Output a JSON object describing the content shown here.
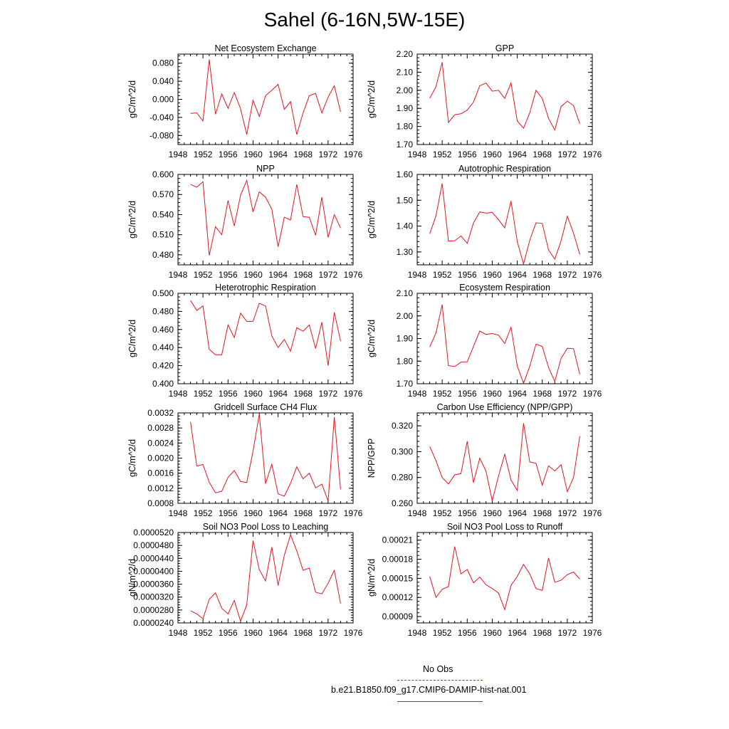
{
  "figure": {
    "title": "Sahel (6-16N,5W-15E)"
  },
  "legend": {
    "entries": [
      {
        "label": "No Obs",
        "color": "#3b49c8",
        "style": "dashed"
      },
      {
        "label": "b.e21.B1850.f09_g17.CMIP6-DAMIP-hist-nat.001",
        "color": "#e8141e",
        "style": "solid"
      }
    ]
  },
  "chart_data": [
    {
      "type": "line",
      "title": "Net Ecosystem Exchange",
      "ylabel": "gC/m^2/d",
      "xlabel": "",
      "xlim": [
        1948,
        1976
      ],
      "ylim": [
        -0.1,
        0.1
      ],
      "xticks": [
        1948,
        1952,
        1956,
        1960,
        1964,
        1968,
        1972,
        1976
      ],
      "xtick_labels": [
        "1948",
        "1952",
        "1956",
        "1960",
        "1964",
        "1968",
        "1972",
        "1976"
      ],
      "yticks": [
        -0.08,
        -0.04,
        0.0,
        0.04,
        0.08
      ],
      "ytick_labels": [
        "-0.080",
        "-0.040",
        "0.000",
        "0.040",
        "0.080"
      ],
      "series": [
        {
          "color": "#e8141e",
          "x": [
            1950,
            1951,
            1952,
            1953,
            1954,
            1955,
            1956,
            1957,
            1958,
            1959,
            1960,
            1961,
            1962,
            1963,
            1964,
            1965,
            1966,
            1967,
            1968,
            1969,
            1970,
            1971,
            1972,
            1973,
            1974
          ],
          "y": [
            -0.031,
            -0.03,
            -0.048,
            0.088,
            -0.033,
            0.012,
            -0.02,
            0.015,
            -0.021,
            -0.078,
            -0.002,
            -0.038,
            0.008,
            0.02,
            0.033,
            -0.022,
            -0.005,
            -0.078,
            -0.03,
            0.008,
            0.013,
            -0.03,
            0.005,
            0.03,
            -0.028
          ]
        }
      ]
    },
    {
      "type": "line",
      "title": "GPP",
      "ylabel": "gC/m^2/d",
      "xlabel": "",
      "xlim": [
        1948,
        1976
      ],
      "ylim": [
        1.7,
        2.2
      ],
      "xticks": [
        1948,
        1952,
        1956,
        1960,
        1964,
        1968,
        1972,
        1976
      ],
      "xtick_labels": [
        "1948",
        "1952",
        "1956",
        "1960",
        "1964",
        "1968",
        "1972",
        "1976"
      ],
      "yticks": [
        1.7,
        1.8,
        1.9,
        2.0,
        2.1,
        2.2
      ],
      "ytick_labels": [
        "1.70",
        "1.80",
        "1.90",
        "2.00",
        "2.10",
        "2.20"
      ],
      "series": [
        {
          "color": "#e8141e",
          "x": [
            1950,
            1951,
            1952,
            1953,
            1954,
            1955,
            1956,
            1957,
            1958,
            1959,
            1960,
            1961,
            1962,
            1963,
            1964,
            1965,
            1966,
            1967,
            1968,
            1969,
            1970,
            1971,
            1972,
            1973,
            1974
          ],
          "y": [
            1.955,
            2.02,
            2.155,
            1.822,
            1.865,
            1.87,
            1.89,
            1.935,
            2.025,
            2.04,
            1.995,
            2.0,
            1.955,
            2.04,
            1.83,
            1.79,
            1.875,
            2.0,
            1.955,
            1.845,
            1.78,
            1.91,
            1.94,
            1.915,
            1.815
          ]
        }
      ]
    },
    {
      "type": "line",
      "title": "NPP",
      "ylabel": "gC/m^2/d",
      "xlabel": "",
      "xlim": [
        1948,
        1976
      ],
      "ylim": [
        0.465,
        0.6
      ],
      "xticks": [
        1948,
        1952,
        1956,
        1960,
        1964,
        1968,
        1972,
        1976
      ],
      "xtick_labels": [
        "1948",
        "1952",
        "1956",
        "1960",
        "1964",
        "1968",
        "1972",
        "1976"
      ],
      "yticks": [
        0.48,
        0.51,
        0.54,
        0.57,
        0.6
      ],
      "ytick_labels": [
        "0.480",
        "0.510",
        "0.540",
        "0.570",
        "0.600"
      ],
      "series": [
        {
          "color": "#e8141e",
          "x": [
            1950,
            1951,
            1952,
            1953,
            1954,
            1955,
            1956,
            1957,
            1958,
            1959,
            1960,
            1961,
            1962,
            1963,
            1964,
            1965,
            1966,
            1967,
            1968,
            1969,
            1970,
            1971,
            1972,
            1973,
            1974
          ],
          "y": [
            0.585,
            0.581,
            0.589,
            0.479,
            0.522,
            0.51,
            0.561,
            0.523,
            0.569,
            0.591,
            0.544,
            0.574,
            0.566,
            0.548,
            0.492,
            0.536,
            0.532,
            0.585,
            0.537,
            0.536,
            0.509,
            0.566,
            0.506,
            0.54,
            0.52
          ]
        }
      ]
    },
    {
      "type": "line",
      "title": "Autotrophic Respiration",
      "ylabel": "gC/m^2/d",
      "xlabel": "",
      "xlim": [
        1948,
        1976
      ],
      "ylim": [
        1.25,
        1.6
      ],
      "xticks": [
        1948,
        1952,
        1956,
        1960,
        1964,
        1968,
        1972,
        1976
      ],
      "xtick_labels": [
        "1948",
        "1952",
        "1956",
        "1960",
        "1964",
        "1968",
        "1972",
        "1976"
      ],
      "yticks": [
        1.3,
        1.4,
        1.5,
        1.6
      ],
      "ytick_labels": [
        "1.30",
        "1.40",
        "1.50",
        "1.60"
      ],
      "series": [
        {
          "color": "#e8141e",
          "x": [
            1950,
            1951,
            1952,
            1953,
            1954,
            1955,
            1956,
            1957,
            1958,
            1959,
            1960,
            1961,
            1962,
            1963,
            1964,
            1965,
            1966,
            1967,
            1968,
            1969,
            1970,
            1971,
            1972,
            1973,
            1974
          ],
          "y": [
            1.37,
            1.44,
            1.565,
            1.342,
            1.343,
            1.362,
            1.333,
            1.412,
            1.455,
            1.45,
            1.453,
            1.425,
            1.393,
            1.497,
            1.34,
            1.253,
            1.345,
            1.413,
            1.41,
            1.308,
            1.272,
            1.343,
            1.438,
            1.373,
            1.29
          ]
        }
      ]
    },
    {
      "type": "line",
      "title": "Heterotrophic Respiration",
      "ylabel": "gC/m^2/d",
      "xlabel": "",
      "xlim": [
        1948,
        1976
      ],
      "ylim": [
        0.4,
        0.5
      ],
      "xticks": [
        1948,
        1952,
        1956,
        1960,
        1964,
        1968,
        1972,
        1976
      ],
      "xtick_labels": [
        "1948",
        "1952",
        "1956",
        "1960",
        "1964",
        "1968",
        "1972",
        "1976"
      ],
      "yticks": [
        0.4,
        0.42,
        0.44,
        0.46,
        0.48,
        0.5
      ],
      "ytick_labels": [
        "0.400",
        "0.420",
        "0.440",
        "0.460",
        "0.480",
        "0.500"
      ],
      "series": [
        {
          "color": "#e8141e",
          "x": [
            1950,
            1951,
            1952,
            1953,
            1954,
            1955,
            1956,
            1957,
            1958,
            1959,
            1960,
            1961,
            1962,
            1963,
            1964,
            1965,
            1966,
            1967,
            1968,
            1969,
            1970,
            1971,
            1972,
            1973,
            1974
          ],
          "y": [
            0.492,
            0.481,
            0.486,
            0.438,
            0.432,
            0.432,
            0.465,
            0.451,
            0.478,
            0.469,
            0.469,
            0.489,
            0.486,
            0.453,
            0.44,
            0.449,
            0.436,
            0.462,
            0.458,
            0.465,
            0.439,
            0.468,
            0.42,
            0.479,
            0.447
          ]
        }
      ]
    },
    {
      "type": "line",
      "title": "Ecosystem Respiration",
      "ylabel": "gC/m^2/d",
      "xlabel": "",
      "xlim": [
        1948,
        1976
      ],
      "ylim": [
        1.7,
        2.1
      ],
      "xticks": [
        1948,
        1952,
        1956,
        1960,
        1964,
        1968,
        1972,
        1976
      ],
      "xtick_labels": [
        "1948",
        "1952",
        "1956",
        "1960",
        "1964",
        "1968",
        "1972",
        "1976"
      ],
      "yticks": [
        1.7,
        1.8,
        1.9,
        2.0,
        2.1
      ],
      "ytick_labels": [
        "1.70",
        "1.80",
        "1.90",
        "2.00",
        "2.10"
      ],
      "series": [
        {
          "color": "#e8141e",
          "x": [
            1950,
            1951,
            1952,
            1953,
            1954,
            1955,
            1956,
            1957,
            1958,
            1959,
            1960,
            1961,
            1962,
            1963,
            1964,
            1965,
            1966,
            1967,
            1968,
            1969,
            1970,
            1971,
            1972,
            1973,
            1974
          ],
          "y": [
            1.862,
            1.925,
            2.05,
            1.78,
            1.776,
            1.795,
            1.797,
            1.865,
            1.933,
            1.918,
            1.922,
            1.915,
            1.878,
            1.95,
            1.778,
            1.702,
            1.777,
            1.875,
            1.865,
            1.772,
            1.71,
            1.812,
            1.857,
            1.855,
            1.742
          ]
        }
      ]
    },
    {
      "type": "line",
      "title": "Gridcell Surface CH4 Flux",
      "ylabel": "gC/m^2/d",
      "xlabel": "",
      "xlim": [
        1948,
        1976
      ],
      "ylim": [
        0.0008,
        0.0032
      ],
      "xticks": [
        1948,
        1952,
        1956,
        1960,
        1964,
        1968,
        1972,
        1976
      ],
      "xtick_labels": [
        "1948",
        "1952",
        "1956",
        "1960",
        "1964",
        "1968",
        "1972",
        "1976"
      ],
      "yticks": [
        0.0008,
        0.0012,
        0.0016,
        0.002,
        0.0024,
        0.0028,
        0.0032
      ],
      "ytick_labels": [
        "0.0008",
        "0.0012",
        "0.0016",
        "0.0020",
        "0.0024",
        "0.0028",
        "0.0032"
      ],
      "series": [
        {
          "color": "#e8141e",
          "x": [
            1950,
            1951,
            1952,
            1953,
            1954,
            1955,
            1956,
            1957,
            1958,
            1959,
            1960,
            1961,
            1962,
            1963,
            1964,
            1965,
            1966,
            1967,
            1968,
            1969,
            1970,
            1971,
            1972,
            1973,
            1974
          ],
          "y": [
            0.00296,
            0.00179,
            0.00183,
            0.00136,
            0.00108,
            0.00112,
            0.00149,
            0.00167,
            0.00138,
            0.00135,
            0.00218,
            0.00317,
            0.00132,
            0.00184,
            0.00105,
            0.00099,
            0.00133,
            0.00177,
            0.00145,
            0.0016,
            0.00121,
            0.00131,
            0.00086,
            0.00309,
            0.00117
          ]
        }
      ]
    },
    {
      "type": "line",
      "title": "Carbon Use Efficiency (NPP/GPP)",
      "ylabel": "NPP/GPP",
      "xlabel": "",
      "xlim": [
        1948,
        1976
      ],
      "ylim": [
        0.26,
        0.33
      ],
      "xticks": [
        1948,
        1952,
        1956,
        1960,
        1964,
        1968,
        1972,
        1976
      ],
      "xtick_labels": [
        "1948",
        "1952",
        "1956",
        "1960",
        "1964",
        "1968",
        "1972",
        "1976"
      ],
      "yticks": [
        0.26,
        0.28,
        0.3,
        0.32
      ],
      "ytick_labels": [
        "0.260",
        "0.280",
        "0.300",
        "0.320"
      ],
      "series": [
        {
          "color": "#e8141e",
          "x": [
            1950,
            1951,
            1952,
            1953,
            1954,
            1955,
            1956,
            1957,
            1958,
            1959,
            1960,
            1961,
            1962,
            1963,
            1964,
            1965,
            1966,
            1967,
            1968,
            1969,
            1970,
            1971,
            1972,
            1973,
            1974
          ],
          "y": [
            0.304,
            0.293,
            0.28,
            0.275,
            0.282,
            0.283,
            0.308,
            0.276,
            0.295,
            0.285,
            0.262,
            0.281,
            0.298,
            0.278,
            0.27,
            0.322,
            0.292,
            0.291,
            0.274,
            0.289,
            0.285,
            0.29,
            0.269,
            0.28,
            0.312
          ]
        }
      ]
    },
    {
      "type": "line",
      "title": "Soil NO3 Pool Loss to Leaching",
      "ylabel": "gN/m^2/d",
      "xlabel": "",
      "xlim": [
        1948,
        1976
      ],
      "ylim": [
        2.4e-05,
        5.2e-05
      ],
      "xticks": [
        1948,
        1952,
        1956,
        1960,
        1964,
        1968,
        1972,
        1976
      ],
      "xtick_labels": [
        "1948",
        "1952",
        "1956",
        "1960",
        "1964",
        "1968",
        "1972",
        "1976"
      ],
      "yticks": [
        2.4e-05,
        2.8e-05,
        3.2e-05,
        3.6e-05,
        4e-05,
        4.4e-05,
        4.8e-05,
        5.2e-05
      ],
      "ytick_labels": [
        "0.0000240",
        "0.0000280",
        "0.0000320",
        "0.0000360",
        "0.0000400",
        "0.0000440",
        "0.0000480",
        "0.0000520"
      ],
      "series": [
        {
          "color": "#e8141e",
          "x": [
            1950,
            1951,
            1952,
            1953,
            1954,
            1955,
            1956,
            1957,
            1958,
            1959,
            1960,
            1961,
            1962,
            1963,
            1964,
            1965,
            1966,
            1967,
            1968,
            1969,
            1970,
            1971,
            1972,
            1973,
            1974
          ],
          "y": [
            2.78e-05,
            2.68e-05,
            2.53e-05,
            3.13e-05,
            3.33e-05,
            2.85e-05,
            2.68e-05,
            3.1e-05,
            2.45e-05,
            2.96e-05,
            4.95e-05,
            4.05e-05,
            3.7e-05,
            4.75e-05,
            3.56e-05,
            4.5e-05,
            5.13e-05,
            4.63e-05,
            4.03e-05,
            4.1e-05,
            3.35e-05,
            3.3e-05,
            3.63e-05,
            4.03e-05,
            3e-05
          ]
        }
      ]
    },
    {
      "type": "line",
      "title": "Soil NO3 Pool Loss to Runoff",
      "ylabel": "gN/m^2/d",
      "xlabel": "",
      "xlim": [
        1948,
        1976
      ],
      "ylim": [
        8e-05,
        0.000222
      ],
      "xticks": [
        1948,
        1952,
        1956,
        1960,
        1964,
        1968,
        1972,
        1976
      ],
      "xtick_labels": [
        "1948",
        "1952",
        "1956",
        "1960",
        "1964",
        "1968",
        "1972",
        "1976"
      ],
      "yticks": [
        9e-05,
        0.00012,
        0.00015,
        0.00018,
        0.00021
      ],
      "ytick_labels": [
        "0.00009",
        "0.00012",
        "0.00015",
        "0.00018",
        "0.00021"
      ],
      "series": [
        {
          "color": "#e8141e",
          "x": [
            1950,
            1951,
            1952,
            1953,
            1954,
            1955,
            1956,
            1957,
            1958,
            1959,
            1960,
            1961,
            1962,
            1963,
            1964,
            1965,
            1966,
            1967,
            1968,
            1969,
            1970,
            1971,
            1972,
            1973,
            1974
          ],
          "y": [
            0.000153,
            0.00012,
            0.000133,
            0.000137,
            0.0002,
            0.000157,
            0.000164,
            0.000143,
            0.000152,
            0.00014,
            0.000134,
            0.000127,
            0.000101,
            0.000139,
            0.000153,
            0.000172,
            0.000157,
            0.000134,
            0.000131,
            0.000182,
            0.000144,
            0.000147,
            0.000156,
            0.00016,
            0.000149
          ]
        }
      ]
    }
  ]
}
